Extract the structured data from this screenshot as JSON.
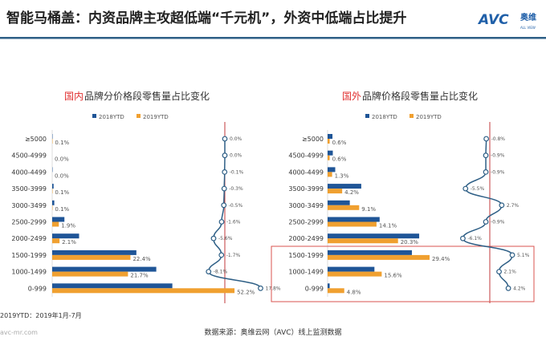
{
  "header": {
    "title": "智能马桶盖：内资品牌主攻超低端“千元机”，外资中低端占比提升",
    "logo_text": "AVC",
    "logo_cn": "奥维",
    "logo_sub": "ALL VIEW"
  },
  "watermark": "奥维云网",
  "footer": {
    "note": "2019YTD：2019年1月-7月",
    "url": "avc-mr.com",
    "source": "数据来源：奥维云网（AVC）线上监测数据"
  },
  "colors": {
    "series_2018": "#1f5597",
    "series_2019": "#f0a030",
    "line": "#2e5f86",
    "highlight": "#d9534f",
    "header_rule": "#2e5f86"
  },
  "chart_data": [
    {
      "type": "bar+line",
      "title_highlight": "国内",
      "title_rest": "品牌分价格段零售量占比变化",
      "categories": [
        "≥5000",
        "4500-4999",
        "4000-4499",
        "3500-3999",
        "3000-3499",
        "2500-2999",
        "2000-2499",
        "1500-1999",
        "1000-1499",
        "0-999"
      ],
      "series": [
        {
          "name": "2018YTD",
          "values": [
            0.1,
            0.0,
            0.1,
            0.4,
            0.6,
            3.5,
            7.7,
            24.1,
            29.8,
            34.4
          ]
        },
        {
          "name": "2019YTD",
          "values": [
            0.1,
            0.0,
            0.0,
            0.1,
            0.1,
            1.9,
            2.1,
            22.4,
            21.7,
            52.2
          ],
          "labels": [
            "0.1%",
            "0.0%",
            "0.0%",
            "0.1%",
            "0.1%",
            "1.9%",
            "2.1%",
            "22.4%",
            "21.7%",
            "52.2%"
          ]
        }
      ],
      "change": {
        "values": [
          0.0,
          0.0,
          -0.1,
          -0.3,
          -0.5,
          -1.6,
          -5.6,
          -1.7,
          -8.1,
          17.8
        ],
        "labels": [
          "0.0%",
          "0.0%",
          "-0.1%",
          "-0.3%",
          "-0.5%",
          "-1.6%",
          "-5.6%",
          "-1.7%",
          "-8.1%",
          "17.8%"
        ]
      },
      "legend": "top"
    },
    {
      "type": "bar+line",
      "title_highlight": "国外",
      "title_rest": "品牌价格段零售量占比变化",
      "categories": [
        "≥5000",
        "4500-4999",
        "4000-4499",
        "3500-3999",
        "3000-3499",
        "2500-2999",
        "2000-2499",
        "1500-1999",
        "1000-1499",
        "0-999"
      ],
      "series": [
        {
          "name": "2018YTD",
          "values": [
            1.4,
            1.5,
            2.2,
            9.7,
            6.4,
            15.0,
            26.4,
            24.3,
            13.5,
            0.6
          ]
        },
        {
          "name": "2019YTD",
          "values": [
            0.6,
            0.6,
            1.3,
            4.2,
            9.1,
            14.1,
            20.3,
            29.4,
            15.6,
            4.8
          ],
          "labels": [
            "0.6%",
            "0.6%",
            "1.3%",
            "4.2%",
            "9.1%",
            "14.1%",
            "20.3%",
            "29.4%",
            "15.6%",
            "4.8%"
          ]
        }
      ],
      "change": {
        "values": [
          -0.8,
          -0.9,
          -0.9,
          -5.5,
          2.7,
          -0.9,
          -6.1,
          5.1,
          2.1,
          4.2
        ],
        "labels": [
          "-0.8%",
          "-0.9%",
          "-0.9%",
          "-5.5%",
          "2.7%",
          "-0.9%",
          "-6.1%",
          "5.1%",
          "2.1%",
          "4.2%"
        ]
      },
      "highlight_categories": [
        "1500-1999",
        "1000-1499",
        "0-999"
      ],
      "legend": "top"
    }
  ]
}
